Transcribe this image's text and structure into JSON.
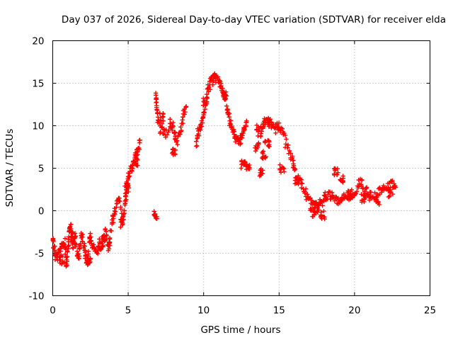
{
  "chart_data": {
    "type": "scatter",
    "title": "Day 037 of 2026, Sidereal Day-to-day VTEC variation (SDTVAR) for receiver elda",
    "xlabel": "GPS time / hours",
    "ylabel": "SDTVAR / TECUs",
    "xlim": [
      0,
      25
    ],
    "ylim": [
      -10,
      20
    ],
    "xticks": [
      0,
      5,
      10,
      15,
      20,
      25
    ],
    "yticks": [
      -10,
      -5,
      0,
      5,
      10,
      15,
      20
    ],
    "grid": true,
    "marker": "plus",
    "color": "#ff0000",
    "series": [
      {
        "name": "SDTVAR",
        "trace": [
          [
            0.0,
            -3.3
          ],
          [
            0.1,
            -4.5
          ],
          [
            0.2,
            -5.6
          ],
          [
            0.4,
            -5.3
          ],
          [
            0.6,
            -4.2
          ],
          [
            0.8,
            -3.6
          ],
          [
            0.9,
            -6.5
          ],
          [
            1.0,
            -5.0
          ],
          [
            1.1,
            -2.5
          ],
          [
            1.2,
            -1.8
          ],
          [
            1.3,
            -4.0
          ],
          [
            1.5,
            -3.5
          ],
          [
            1.7,
            -5.5
          ],
          [
            1.9,
            -3.0
          ],
          [
            2.1,
            -4.5
          ],
          [
            2.3,
            -6.2
          ],
          [
            2.5,
            -2.8
          ],
          [
            2.7,
            -4.2
          ],
          [
            2.9,
            -5.0
          ],
          [
            3.1,
            -3.8
          ],
          [
            3.3,
            -4.5
          ],
          [
            3.5,
            -2.2
          ],
          [
            3.7,
            -4.5
          ],
          [
            3.8,
            -3.2
          ],
          [
            4.0,
            -0.5
          ],
          [
            4.2,
            0.2
          ],
          [
            4.4,
            1.5
          ],
          [
            4.6,
            -1.0
          ],
          [
            4.8,
            0.5
          ],
          [
            4.9,
            3.0
          ],
          [
            5.0,
            4.0
          ],
          [
            5.2,
            5.0
          ],
          [
            5.4,
            6.0
          ],
          [
            5.6,
            7.0
          ],
          [
            5.8,
            8.0
          ],
          [
            6.8,
            13.5
          ],
          [
            6.9,
            12.5
          ],
          [
            7.0,
            10.5
          ],
          [
            7.2,
            9.5
          ],
          [
            7.5,
            9.0
          ],
          [
            7.8,
            10.0
          ],
          [
            8.0,
            9.5
          ],
          [
            8.2,
            8.5
          ],
          [
            8.5,
            9.5
          ],
          [
            8.7,
            11.5
          ],
          [
            8.9,
            12.0
          ],
          [
            9.5,
            8.0
          ],
          [
            9.7,
            9.5
          ],
          [
            9.9,
            10.5
          ],
          [
            10.1,
            12.0
          ],
          [
            10.3,
            14.5
          ],
          [
            10.5,
            15.5
          ],
          [
            10.7,
            15.8
          ],
          [
            10.9,
            15.5
          ],
          [
            11.1,
            14.8
          ],
          [
            11.3,
            14.0
          ],
          [
            11.5,
            12.5
          ],
          [
            11.7,
            11.0
          ],
          [
            11.9,
            9.5
          ],
          [
            12.1,
            8.5
          ],
          [
            12.3,
            8.0
          ],
          [
            12.5,
            8.5
          ],
          [
            12.7,
            9.5
          ],
          [
            12.9,
            10.5
          ],
          [
            13.5,
            10.0
          ],
          [
            13.8,
            9.0
          ],
          [
            14.0,
            10.5
          ],
          [
            14.2,
            10.8
          ],
          [
            14.4,
            10.2
          ],
          [
            14.7,
            9.5
          ],
          [
            15.0,
            10.0
          ],
          [
            15.3,
            9.0
          ],
          [
            15.6,
            7.5
          ],
          [
            15.9,
            5.5
          ],
          [
            16.2,
            4.0
          ],
          [
            16.5,
            3.0
          ],
          [
            16.8,
            2.0
          ],
          [
            17.1,
            1.0
          ],
          [
            17.4,
            0.5
          ],
          [
            17.7,
            1.0
          ],
          [
            18.0,
            1.5
          ],
          [
            18.3,
            1.8
          ],
          [
            18.6,
            1.5
          ],
          [
            18.9,
            1.0
          ],
          [
            19.2,
            1.5
          ],
          [
            19.5,
            1.8
          ],
          [
            19.8,
            1.5
          ],
          [
            20.1,
            2.5
          ],
          [
            20.4,
            3.5
          ],
          [
            20.7,
            2.5
          ],
          [
            21.0,
            2.0
          ],
          [
            21.3,
            1.8
          ],
          [
            21.6,
            2.2
          ],
          [
            21.9,
            2.5
          ],
          [
            22.2,
            3.0
          ],
          [
            22.5,
            3.2
          ],
          [
            22.8,
            3.0
          ]
        ],
        "clusters": [
          [
            6.8,
            -0.5
          ],
          [
            7.2,
            11.0
          ],
          [
            8.0,
            6.8
          ],
          [
            10.1,
            12.8
          ],
          [
            11.4,
            13.5
          ],
          [
            12.6,
            5.5
          ],
          [
            12.9,
            5.2
          ],
          [
            13.5,
            7.5
          ],
          [
            13.8,
            4.5
          ],
          [
            14.0,
            6.5
          ],
          [
            14.2,
            8.0
          ],
          [
            15.2,
            5.0
          ],
          [
            16.2,
            3.5
          ],
          [
            17.2,
            -0.2
          ],
          [
            17.5,
            0.2
          ],
          [
            17.9,
            -0.5
          ],
          [
            18.8,
            4.5
          ],
          [
            19.1,
            3.8
          ],
          [
            19.7,
            2.0
          ],
          [
            20.6,
            1.5
          ],
          [
            21.5,
            1.2
          ],
          [
            22.4,
            2.0
          ],
          [
            4.6,
            -1.5
          ],
          [
            4.9,
            2.5
          ],
          [
            5.5,
            5.8
          ],
          [
            2.4,
            -5.8
          ],
          [
            3.4,
            -3.5
          ],
          [
            1.4,
            -3.0
          ],
          [
            0.6,
            -5.8
          ]
        ]
      }
    ]
  }
}
